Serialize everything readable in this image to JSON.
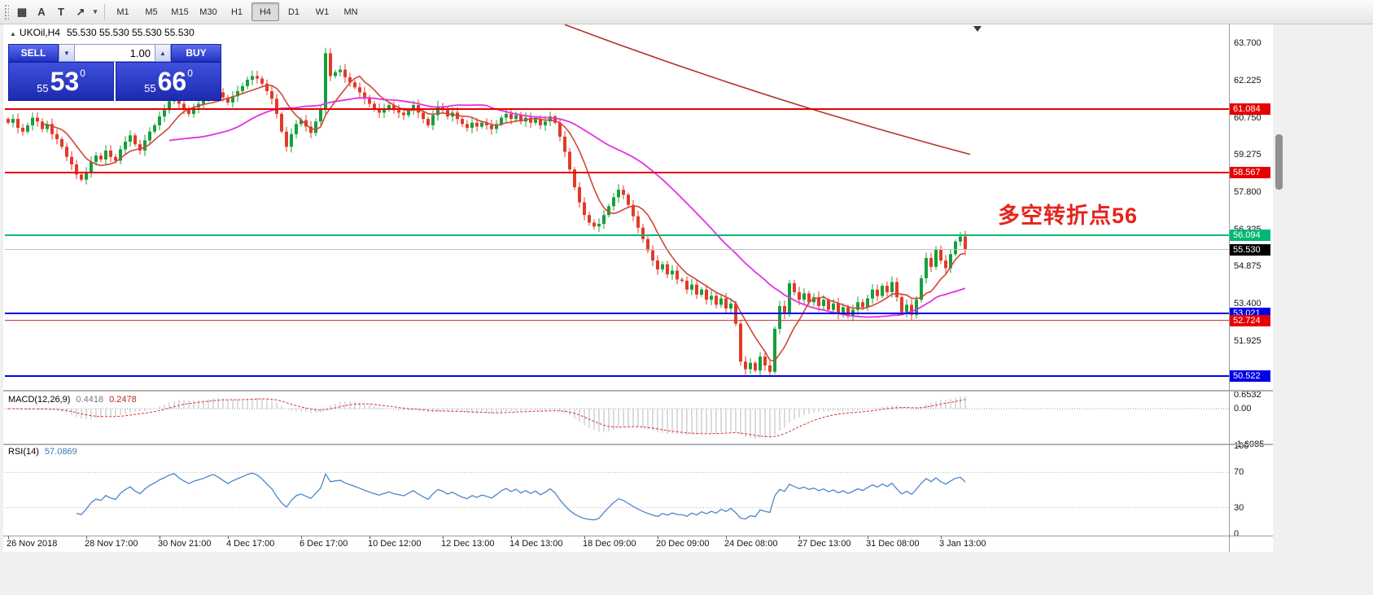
{
  "toolbar": {
    "tools": [
      {
        "name": "shapes-tool",
        "glyph": "▦"
      },
      {
        "name": "text-label-tool",
        "glyph": "A"
      },
      {
        "name": "text-box-tool",
        "glyph": "T"
      },
      {
        "name": "arrow-style-tool",
        "glyph": "↗"
      },
      {
        "name": "arrow-style-dropdown",
        "glyph": "▾"
      }
    ],
    "timeframes": [
      "M1",
      "M5",
      "M15",
      "M30",
      "H1",
      "H4",
      "D1",
      "W1",
      "MN"
    ],
    "active_timeframe": "H4"
  },
  "chart": {
    "expand_icon": "▲",
    "symbol": "UKOil,H4",
    "ohlc": "55.530 55.530 55.530 55.530",
    "annotation": "多空转折点56",
    "levels": [
      {
        "label": "61.084",
        "price": 61.084,
        "color": "#e60000",
        "line_color": "#e60000",
        "thickness": 2
      },
      {
        "label": "58.567",
        "price": 58.567,
        "color": "#e60000",
        "line_color": "#e60000",
        "thickness": 2
      },
      {
        "label": "56.094",
        "price": 56.094,
        "color": "#00b873",
        "line_color": "#00b873",
        "thickness": 2
      },
      {
        "label": "55.530",
        "price": 55.53,
        "color": "#000000",
        "line_color": "#bdbdbd",
        "thickness": 1
      },
      {
        "label": "53.021",
        "price": 53.021,
        "color": "#0000e6",
        "line_color": "#0000e6",
        "thickness": 2
      },
      {
        "label": "52.724",
        "price": 52.724,
        "color": "#e60000",
        "line_color": "#cc3a3a",
        "thickness": 1
      },
      {
        "label": "50.522",
        "price": 50.522,
        "color": "#0000e6",
        "line_color": "#0000e6",
        "thickness": 2
      }
    ],
    "y_labels": [
      "63.700",
      "62.225",
      "60.750",
      "59.275",
      "57.800",
      "56.325",
      "54.875",
      "53.400",
      "51.925"
    ],
    "x_labels": [
      {
        "label": "26 Nov 2018",
        "i": 0
      },
      {
        "label": "28 Nov 17:00",
        "i": 16
      },
      {
        "label": "30 Nov 21:00",
        "i": 31
      },
      {
        "label": "4 Dec 17:00",
        "i": 45
      },
      {
        "label": "6 Dec 17:00",
        "i": 60
      },
      {
        "label": "10 Dec 12:00",
        "i": 74
      },
      {
        "label": "12 Dec 13:00",
        "i": 89
      },
      {
        "label": "14 Dec 13:00",
        "i": 103
      },
      {
        "label": "18 Dec 09:00",
        "i": 118
      },
      {
        "label": "20 Dec 09:00",
        "i": 133
      },
      {
        "label": "24 Dec 08:00",
        "i": 147
      },
      {
        "label": "27 Dec 13:00",
        "i": 162
      },
      {
        "label": "31 Dec 08:00",
        "i": 176
      },
      {
        "label": "3 Jan 13:00",
        "i": 191
      }
    ]
  },
  "trade_panel": {
    "sell": "SELL",
    "buy": "BUY",
    "volume": "1.00",
    "spin_down": "▼",
    "spin_up": "▲",
    "bid_small": "55",
    "bid_big": "53",
    "bid_sup": "0",
    "ask_small": "55",
    "ask_big": "66",
    "ask_sup": "0"
  },
  "macd": {
    "name": "MACD(12,26,9)",
    "value_main": "0.4418",
    "value_signal": "0.2478",
    "fast": 12,
    "slow": 26,
    "signal": 9,
    "axis": [
      "0.6532",
      "0.00",
      "-1.6985"
    ],
    "axis_values": [
      0.6532,
      0,
      -1.6985
    ]
  },
  "rsi": {
    "name": "RSI(14)",
    "value": "57.0869",
    "period": 14,
    "axis": [
      "100",
      "70",
      "30",
      "0"
    ],
    "axis_values": [
      100,
      70,
      30,
      0
    ],
    "levels": [
      70,
      30
    ]
  },
  "chart_data": {
    "type": "candlestick",
    "symbol": "UKOil",
    "timeframe": "H4",
    "visible_range": {
      "start": "26 Nov 2018",
      "end": "3 Jan 13:00"
    },
    "price_axis_range": [
      49.95,
      64.44
    ],
    "closes": [
      60.55,
      60.7,
      60.35,
      60.2,
      60.45,
      60.75,
      60.6,
      60.3,
      60.5,
      60.1,
      59.9,
      59.6,
      59.2,
      58.9,
      58.5,
      58.3,
      58.6,
      59.0,
      59.25,
      59.1,
      59.45,
      59.2,
      59.05,
      59.5,
      59.8,
      60.05,
      59.7,
      59.45,
      59.85,
      60.2,
      60.45,
      60.8,
      61.05,
      61.4,
      61.6,
      61.3,
      61.1,
      60.9,
      61.15,
      61.3,
      61.45,
      61.7,
      61.9,
      61.75,
      61.55,
      61.35,
      61.6,
      61.8,
      62.0,
      62.25,
      62.4,
      62.3,
      62.1,
      61.8,
      61.5,
      60.9,
      60.2,
      59.6,
      60.1,
      60.5,
      60.65,
      60.4,
      60.15,
      60.6,
      61.1,
      63.3,
      62.4,
      62.55,
      62.65,
      62.35,
      62.15,
      61.95,
      61.75,
      61.5,
      61.3,
      61.1,
      60.95,
      61.1,
      61.25,
      61.05,
      60.95,
      60.85,
      61.05,
      61.25,
      60.95,
      60.7,
      60.45,
      60.85,
      61.2,
      61.05,
      60.8,
      60.95,
      60.7,
      60.5,
      60.35,
      60.55,
      60.4,
      60.55,
      60.45,
      60.3,
      60.5,
      60.75,
      60.9,
      60.7,
      60.85,
      60.6,
      60.75,
      60.55,
      60.7,
      60.45,
      60.6,
      60.8,
      60.55,
      60.0,
      59.4,
      58.7,
      58.0,
      57.4,
      56.9,
      56.6,
      56.45,
      56.55,
      56.9,
      57.25,
      57.6,
      57.9,
      57.7,
      57.3,
      56.85,
      56.4,
      55.95,
      55.5,
      55.1,
      54.75,
      54.95,
      54.55,
      54.7,
      54.35,
      54.3,
      53.95,
      54.15,
      53.75,
      53.95,
      53.55,
      53.7,
      53.35,
      53.6,
      53.2,
      53.4,
      52.6,
      51.1,
      50.8,
      51.05,
      50.75,
      51.3,
      50.95,
      50.7,
      52.4,
      53.3,
      53.0,
      54.2,
      53.85,
      53.55,
      53.8,
      53.45,
      53.65,
      53.3,
      53.55,
      53.15,
      53.4,
      53.0,
      53.25,
      52.9,
      53.15,
      53.45,
      53.25,
      53.6,
      53.95,
      53.7,
      54.1,
      53.85,
      54.25,
      53.65,
      53.05,
      53.35,
      52.95,
      53.55,
      54.4,
      55.2,
      54.85,
      55.55,
      55.1,
      54.8,
      55.35,
      55.85,
      56.05,
      55.53
    ],
    "ma_fast_period": 8,
    "ma_slow_period": 34,
    "trendline": {
      "i1": 114,
      "p1": 64.43,
      "i2": 197,
      "p2": 59.3
    }
  },
  "colors": {
    "bull": "#14a03c",
    "bear": "#e23a28",
    "ma_fast": "#d24538",
    "ma_slow": "#e331e3",
    "trend": "#b2352c",
    "macd_hist": "#b9b9b9",
    "macd_signal": "#e03030",
    "rsi": "#4a86c8",
    "panel_blue": "#2334c6",
    "tag_red": "#e60000",
    "tag_green": "#00b873",
    "tag_blue": "#0000e6",
    "tag_black": "#000000"
  }
}
